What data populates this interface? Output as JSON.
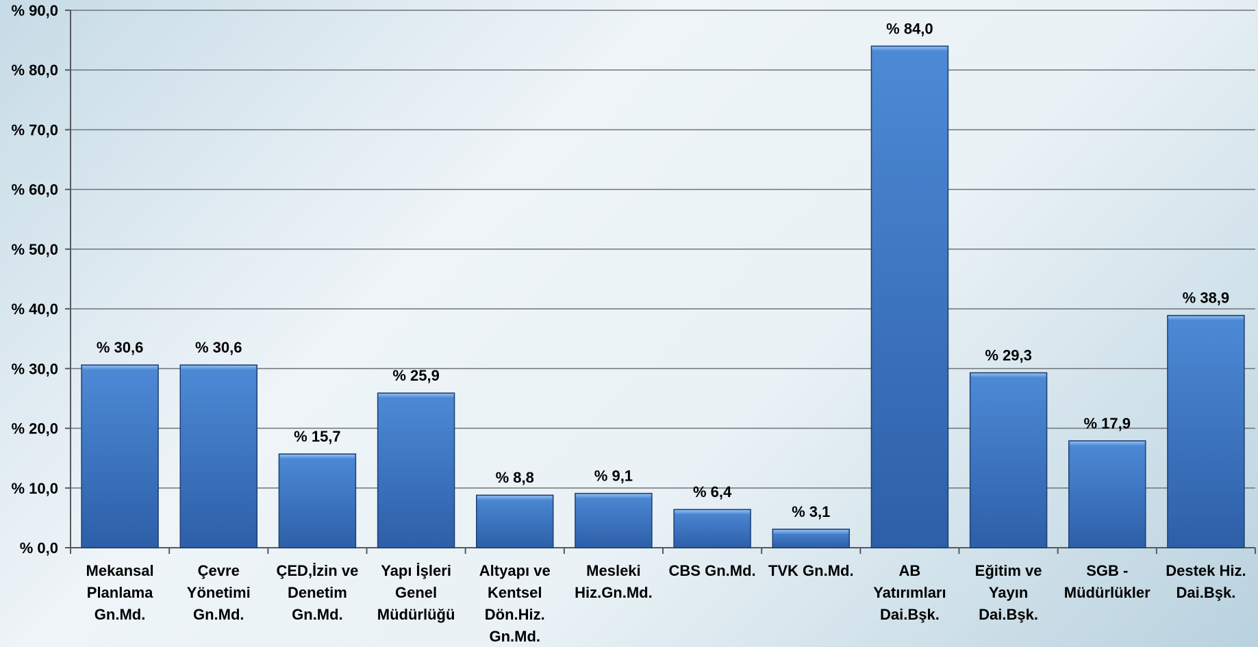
{
  "chart_data": {
    "type": "bar",
    "title": "",
    "xlabel": "",
    "ylabel": "",
    "ylim": [
      0,
      90
    ],
    "y_ticks": [
      "% 0,0",
      "% 10,0",
      "% 20,0",
      "% 30,0",
      "% 40,0",
      "% 50,0",
      "% 60,0",
      "% 70,0",
      "% 80,0",
      "% 90,0"
    ],
    "grid": true,
    "bar_color": "#3f7bc9",
    "categories": [
      [
        "Mekansal",
        "Planlama",
        "Gn.Md."
      ],
      [
        "Çevre",
        "Yönetimi",
        "Gn.Md."
      ],
      [
        "ÇED,İzin ve",
        "Denetim",
        "Gn.Md."
      ],
      [
        "Yapı İşleri",
        "Genel",
        "Müdürlüğü"
      ],
      [
        "Altyapı ve",
        "Kentsel",
        "Dön.Hiz.",
        "Gn.Md."
      ],
      [
        "Mesleki",
        "Hiz.Gn.Md."
      ],
      [
        "CBS Gn.Md."
      ],
      [
        "TVK Gn.Md."
      ],
      [
        "AB",
        "Yatırımları",
        "Dai.Bşk."
      ],
      [
        "Eğitim ve",
        "Yayın",
        "Dai.Bşk."
      ],
      [
        "SGB -",
        "Müdürlükler"
      ],
      [
        "Destek Hiz.",
        "Dai.Bşk."
      ]
    ],
    "values": [
      30.6,
      30.6,
      15.7,
      25.9,
      8.8,
      9.1,
      6.4,
      3.1,
      84.0,
      29.3,
      17.9,
      38.9
    ],
    "data_labels": [
      "% 30,6",
      "% 30,6",
      "% 15,7",
      "% 25,9",
      "% 8,8",
      "% 9,1",
      "% 6,4",
      "% 3,1",
      "% 84,0",
      "% 29,3",
      "% 17,9",
      "% 38,9"
    ]
  }
}
